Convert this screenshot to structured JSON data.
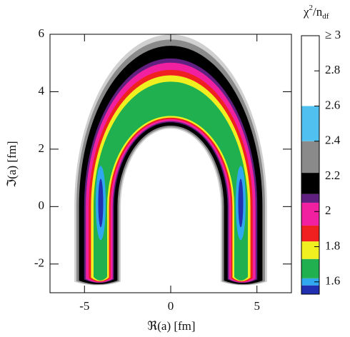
{
  "chart_data": {
    "type": "heatmap",
    "xlabel": "ℜ(a) [fm]",
    "ylabel": "ℑ(a) [fm]",
    "xlim": [
      -7,
      7
    ],
    "ylim": [
      -3,
      6
    ],
    "xticks": [
      -5,
      0,
      5
    ],
    "yticks": [
      -2,
      0,
      2,
      4,
      6
    ],
    "colorbar": {
      "title": [
        "χ",
        "2",
        "/n",
        "df"
      ],
      "lim": [
        1.53,
        3
      ],
      "ticks": [
        1.6,
        1.8,
        2,
        2.2,
        2.4,
        2.6,
        2.8,
        {
          "value": 3,
          "label": "≥ 3"
        }
      ],
      "levels": [
        1.53,
        1.58,
        1.62,
        1.73,
        1.83,
        1.92,
        2.05,
        2.1,
        2.22,
        2.4,
        2.6,
        3
      ],
      "colors": [
        "#2030b0",
        "#30a8f0",
        "#20b050",
        "#f0f020",
        "#f02020",
        "#f020a0",
        "#602080",
        "#000000",
        "#8a8a8a",
        "#50c0f0",
        "#ffffff"
      ]
    }
  }
}
